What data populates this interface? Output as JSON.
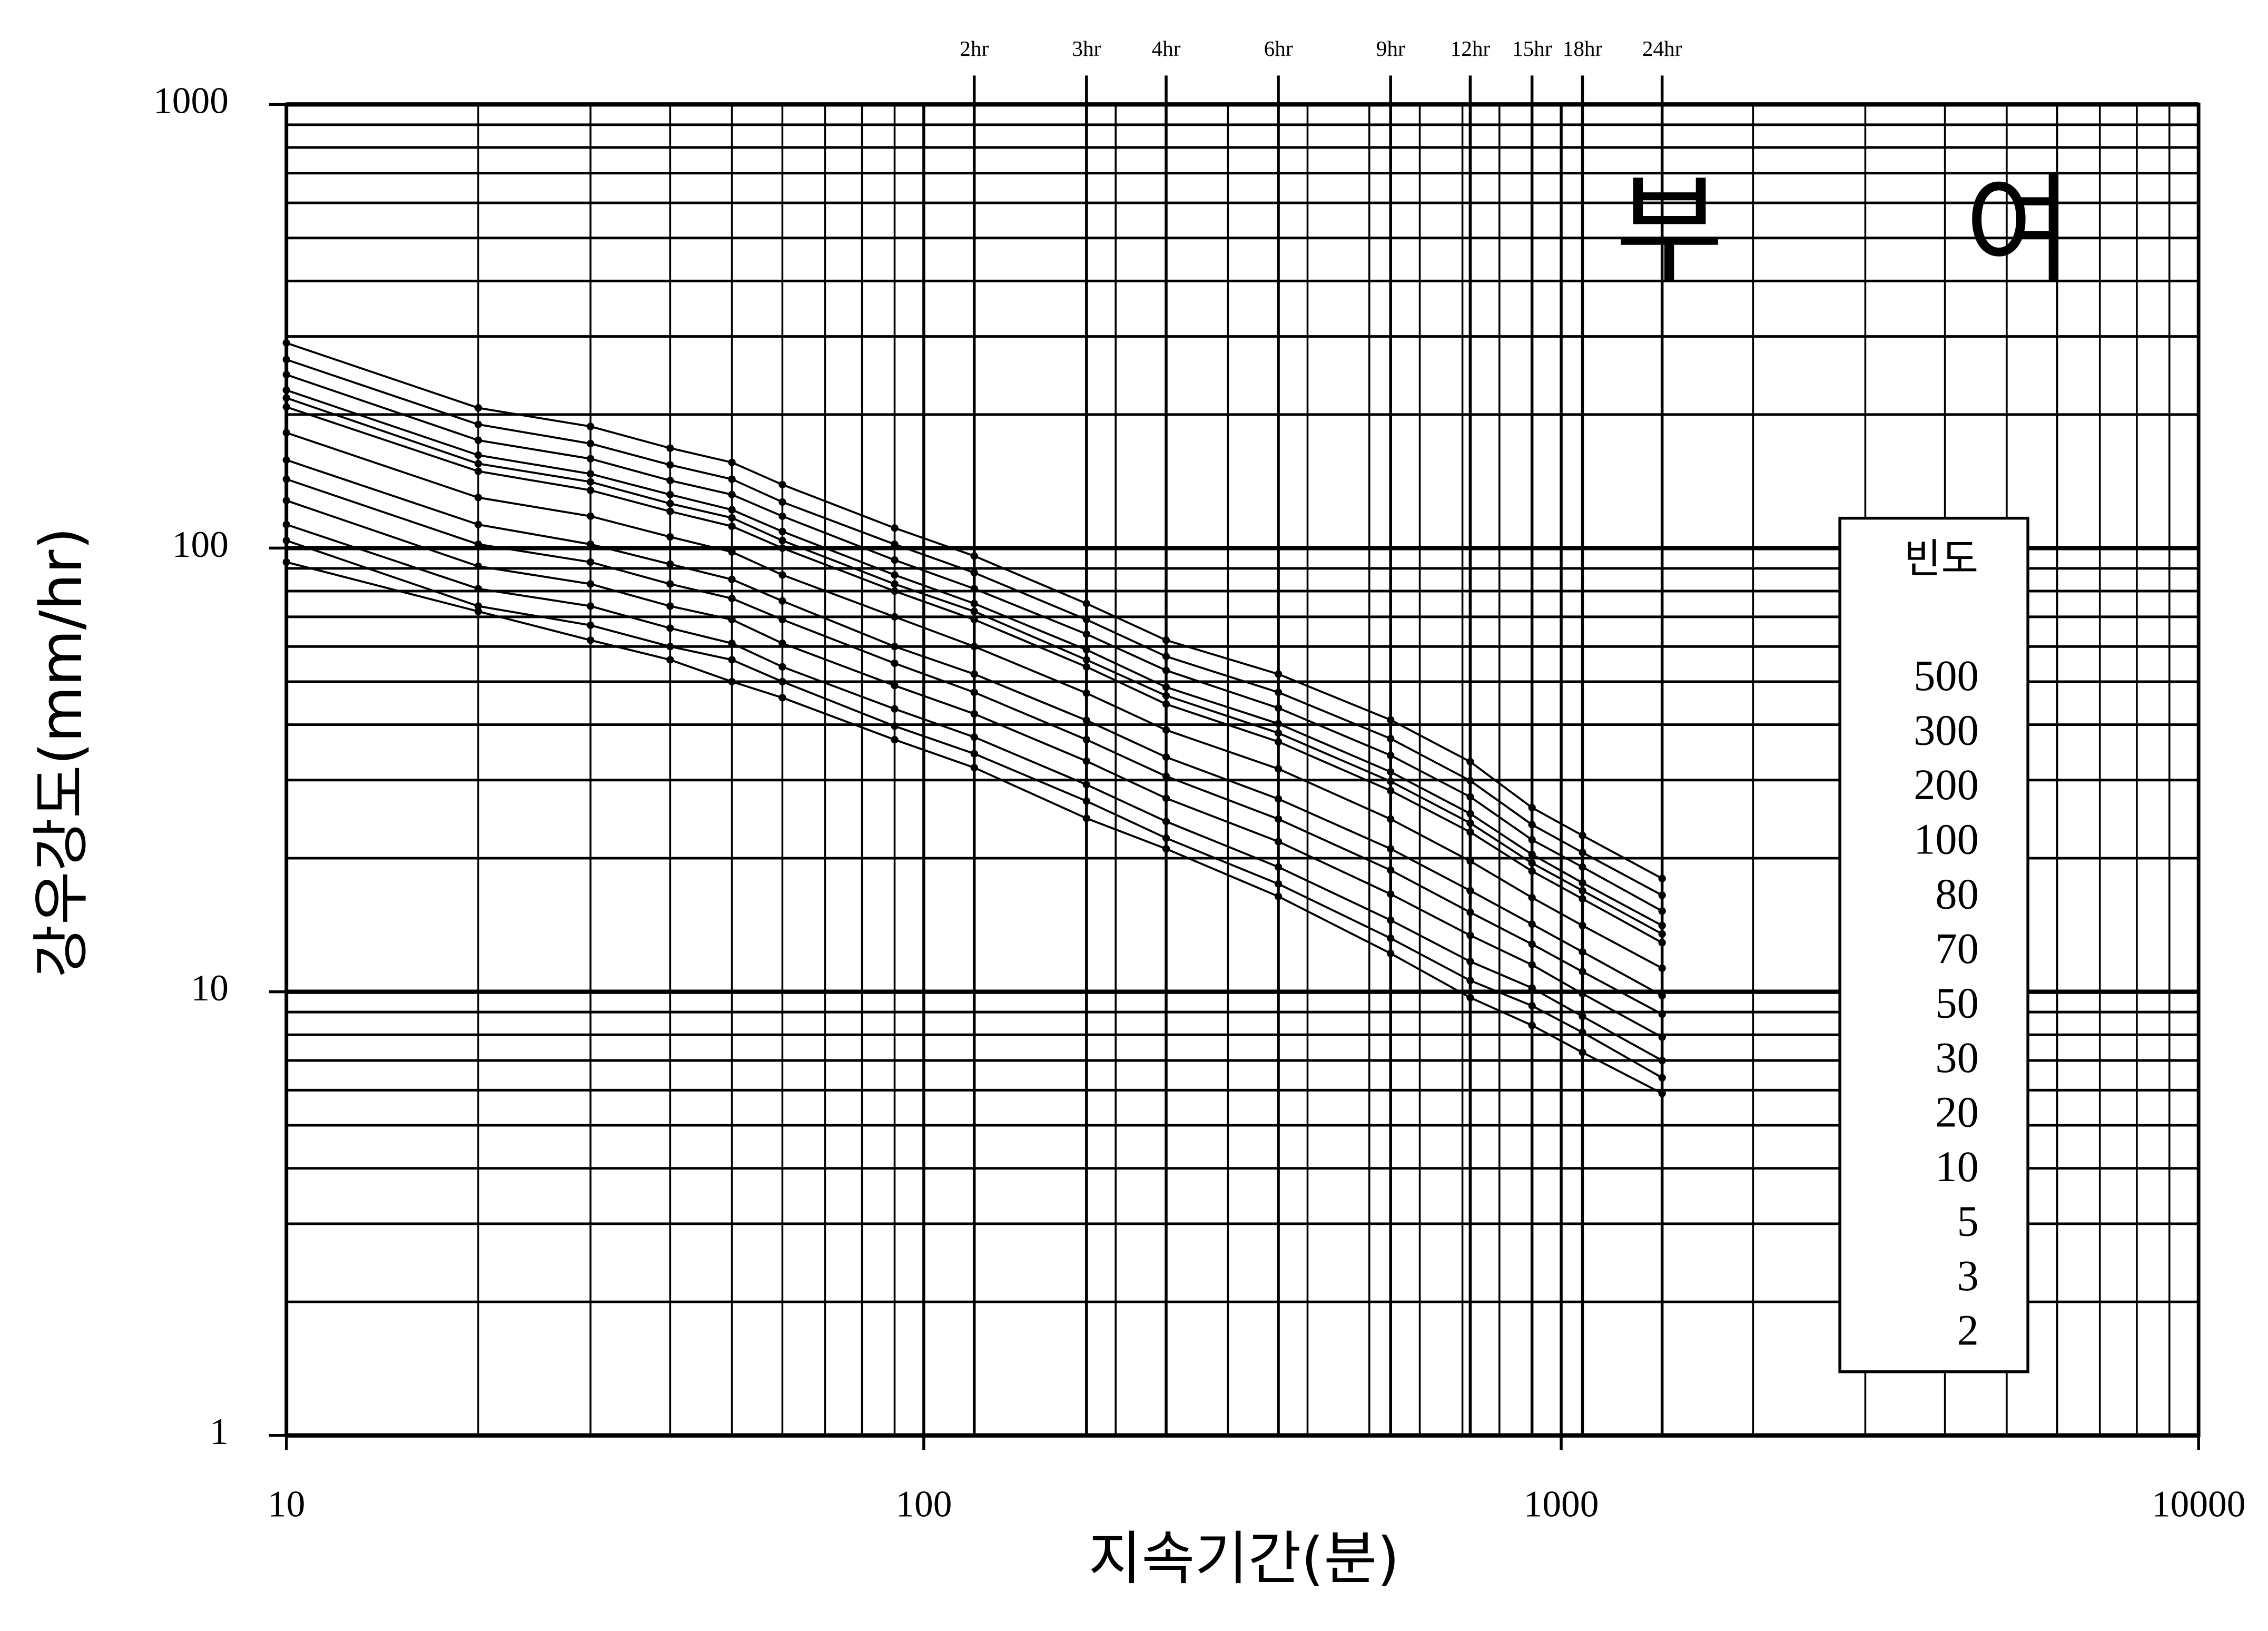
{
  "chart_data": {
    "type": "line",
    "title": "부 여",
    "x_label": "지속기간(분)",
    "y_label": "강우강도(mm/hr)",
    "legend_title": "빈도",
    "log_x": true,
    "log_y": true,
    "grid": true,
    "minor_grid": true,
    "legend_position": "right",
    "xlim": [
      10,
      10000
    ],
    "ylim": [
      1,
      1000
    ],
    "xticks": [
      10,
      100,
      1000,
      10000
    ],
    "yticks": [
      1,
      10,
      100,
      1000
    ],
    "top_ticks": [
      {
        "value": 120,
        "label": "2hr"
      },
      {
        "value": 180,
        "label": "3hr"
      },
      {
        "value": 240,
        "label": "4hr"
      },
      {
        "value": 360,
        "label": "6hr"
      },
      {
        "value": 540,
        "label": "9hr"
      },
      {
        "value": 720,
        "label": "12hr"
      },
      {
        "value": 900,
        "label": "15hr"
      },
      {
        "value": 1080,
        "label": "18hr"
      },
      {
        "value": 1440,
        "label": "24hr"
      }
    ],
    "x": [
      10,
      20,
      30,
      40,
      50,
      60,
      90,
      120,
      180,
      240,
      360,
      540,
      720,
      900,
      1080,
      1440
    ],
    "series": [
      {
        "name": "500",
        "color": "#000000",
        "values": [
          290,
          207,
          188,
          168,
          156,
          139,
          111,
          96,
          75,
          62,
          52,
          41,
          33,
          26,
          22.5,
          18
        ]
      },
      {
        "name": "300",
        "color": "#000000",
        "values": [
          266,
          190,
          172,
          154,
          143,
          127,
          102,
          88,
          69,
          57,
          47.3,
          37.2,
          29.9,
          23.8,
          20.6,
          16.5
        ]
      },
      {
        "name": "200",
        "color": "#000000",
        "values": [
          246,
          175,
          159,
          142,
          132,
          118,
          94,
          81,
          64,
          53,
          43.6,
          34.1,
          27.5,
          22.0,
          19.1,
          15.2
        ]
      },
      {
        "name": "100",
        "color": "#000000",
        "values": [
          227,
          162,
          147,
          132,
          122,
          109,
          87,
          75,
          59,
          48.6,
          40.2,
          31.3,
          25.2,
          20.4,
          17.6,
          14.1
        ]
      },
      {
        "name": "80",
        "color": "#000000",
        "values": [
          218,
          155,
          141,
          126,
          117,
          104,
          83,
          72,
          56,
          46.5,
          38.3,
          29.8,
          24.0,
          19.5,
          16.9,
          13.5
        ]
      },
      {
        "name": "70",
        "color": "#000000",
        "values": [
          208,
          149,
          135,
          121,
          112,
          100,
          80,
          69,
          54,
          44.5,
          36.6,
          28.4,
          22.9,
          18.7,
          16.2,
          12.9
        ]
      },
      {
        "name": "50",
        "color": "#000000",
        "values": [
          182,
          130,
          118,
          106,
          98,
          87,
          70,
          60,
          47.1,
          38.9,
          31.8,
          24.5,
          19.7,
          16.3,
          14.1,
          11.3
        ]
      },
      {
        "name": "30",
        "color": "#000000",
        "values": [
          158,
          113,
          102,
          92,
          85,
          76,
          60,
          52,
          40.9,
          33.8,
          27.2,
          21.0,
          16.9,
          14.2,
          12.3,
          9.8
        ]
      },
      {
        "name": "20",
        "color": "#000000",
        "values": [
          143,
          102,
          93,
          83,
          77,
          69,
          55,
          47.3,
          37.0,
          30.6,
          24.5,
          18.8,
          15.1,
          12.8,
          11.1,
          8.9
        ]
      },
      {
        "name": "10",
        "color": "#000000",
        "values": [
          128,
          91,
          83,
          74,
          69,
          61,
          49,
          42.3,
          33.1,
          27.3,
          21.8,
          16.6,
          13.4,
          11.5,
          9.9,
          7.9
        ]
      },
      {
        "name": "5",
        "color": "#000000",
        "values": [
          113,
          81,
          74,
          66,
          61,
          54,
          43.4,
          37.5,
          29.3,
          24.2,
          19.1,
          14.5,
          11.7,
          10.2,
          8.8,
          7.0
        ]
      },
      {
        "name": "3",
        "color": "#000000",
        "values": [
          104,
          74,
          67,
          60,
          56,
          50,
          39.7,
          34.4,
          26.9,
          22.2,
          17.5,
          13.2,
          10.6,
          9.3,
          8.1,
          6.4
        ]
      },
      {
        "name": "2",
        "color": "#000000",
        "values": [
          93,
          72,
          62,
          56,
          50,
          46,
          37,
          32,
          24.6,
          21,
          16.4,
          12.2,
          9.7,
          8.4,
          7.3,
          5.9
        ]
      }
    ]
  }
}
